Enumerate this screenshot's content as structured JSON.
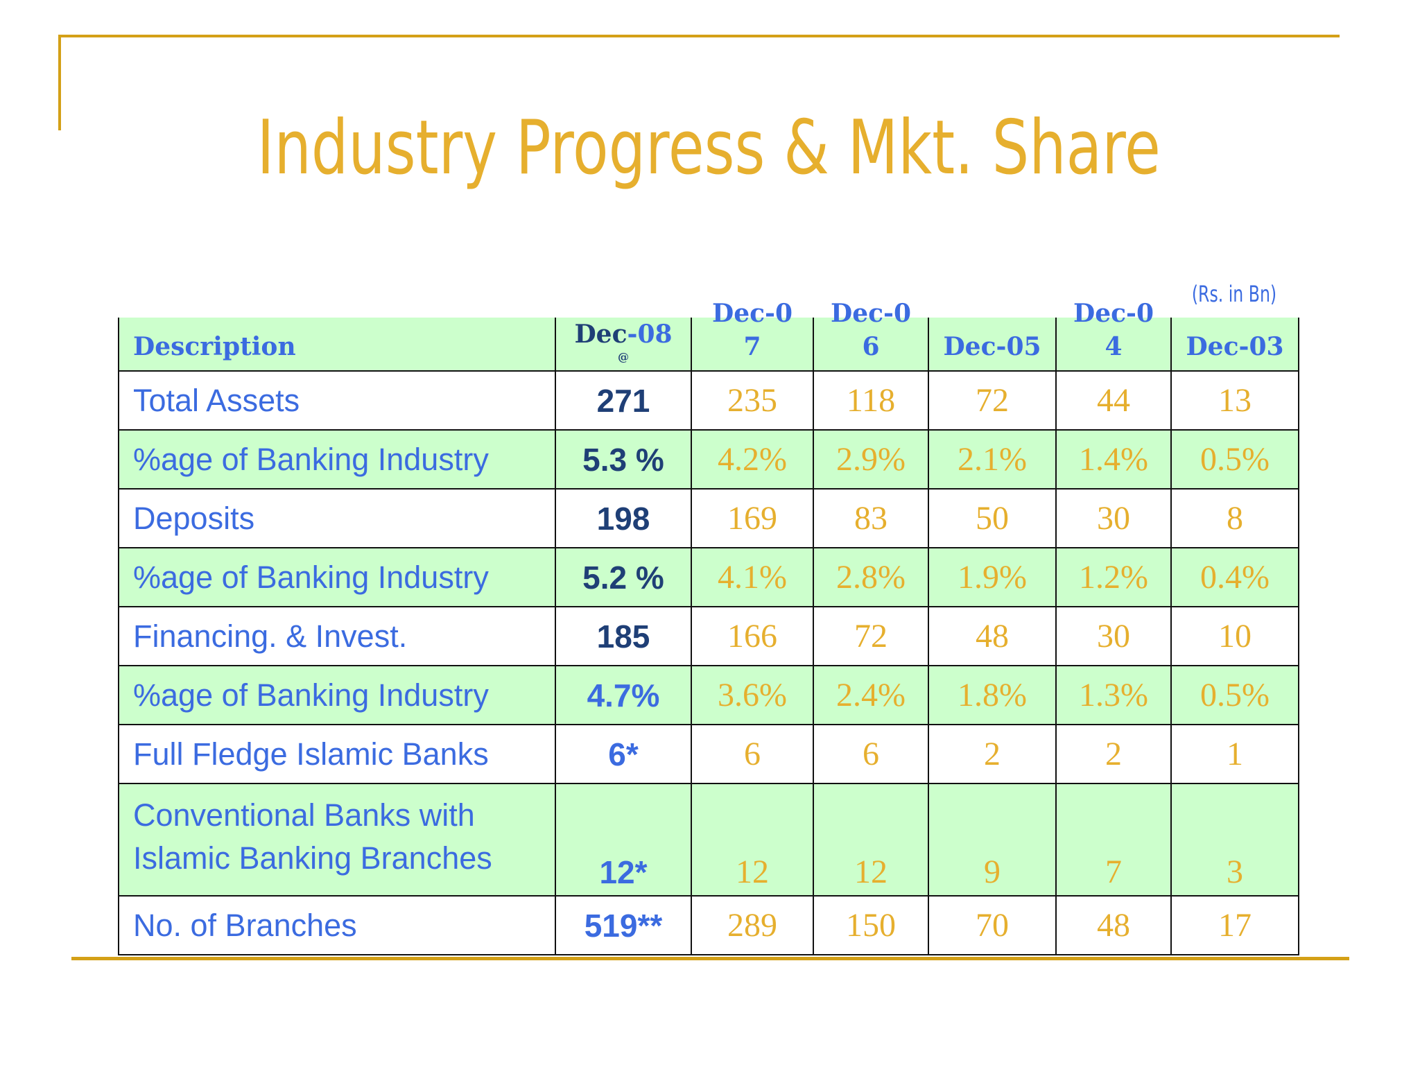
{
  "title": "Industry Progress & Mkt. Share",
  "unit_note": "(Rs. in Bn)",
  "colors": {
    "gold": "#E6AF2E",
    "blue": "#3B6BE0",
    "navy": "#1F3F76",
    "row_green": "#CCFFCC"
  },
  "table": {
    "headers": {
      "description": "Description",
      "dec08_a": "Dec",
      "dec08_b": "-08",
      "dec08_note": "@",
      "dec07_a": "Dec-0",
      "dec07_b": "7",
      "dec06_a": "Dec-0",
      "dec06_b": "6",
      "dec05": "Dec-05",
      "dec04_a": "Dec-0",
      "dec04_b": "4",
      "dec03": "Dec-03"
    },
    "rows": [
      {
        "label": "Total Assets",
        "values": [
          "271",
          "235",
          "118",
          "72",
          "44",
          "13"
        ]
      },
      {
        "label": "%age of Banking Industry",
        "values": [
          "5.3 %",
          "4.2%",
          "2.9%",
          "2.1%",
          "1.4%",
          "0.5%"
        ]
      },
      {
        "label": "Deposits",
        "values": [
          "198",
          "169",
          "83",
          "50",
          "30",
          "8"
        ]
      },
      {
        "label": "%age of Banking Industry",
        "values": [
          "5.2 %",
          "4.1%",
          "2.8%",
          "1.9%",
          "1.2%",
          "0.4%"
        ]
      },
      {
        "label": "Financing. & Invest.",
        "values": [
          "185",
          "166",
          "72",
          "48",
          "30",
          "10"
        ]
      },
      {
        "label": "%age of Banking Industry",
        "values": [
          "4.7%",
          "3.6%",
          "2.4%",
          "1.8%",
          "1.3%",
          "0.5%"
        ]
      },
      {
        "label": "Full Fledge Islamic Banks",
        "values": [
          "6*",
          "6",
          "6",
          "2",
          "2",
          "1"
        ]
      },
      {
        "label_line1": "Conventional Banks with",
        "label_line2": "Islamic Banking Branches",
        "values": [
          "12*",
          "12",
          "12",
          "9",
          "7",
          "3"
        ]
      },
      {
        "label": "No. of Branches",
        "values": [
          "519**",
          "289",
          "150",
          "70",
          "48",
          "17"
        ]
      }
    ]
  }
}
